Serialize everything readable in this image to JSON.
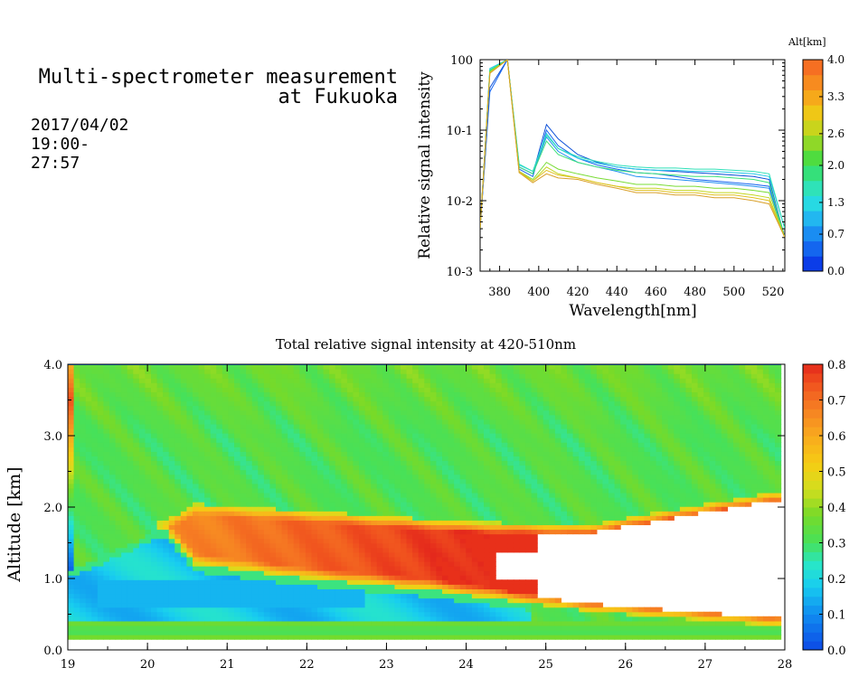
{
  "header": {
    "title_line1": "Multi-spectrometer measurement",
    "title_line2": "at Fukuoka",
    "datetime": "2017/04/02 19:00-27:57"
  },
  "chart_data": [
    {
      "type": "line",
      "xlabel": "Wavelength[nm]",
      "ylabel": "Relative signal intensity",
      "xlim": [
        370,
        526
      ],
      "ylim": [
        0.001,
        1
      ],
      "yscale": "log",
      "xticks": [
        "380",
        "400",
        "420",
        "440",
        "460",
        "480",
        "500",
        "520"
      ],
      "yticks": [
        "10-3",
        "10-2",
        "10-1",
        "100"
      ],
      "x": [
        370,
        375,
        384,
        390,
        397,
        404,
        410,
        420,
        430,
        440,
        450,
        460,
        470,
        480,
        490,
        500,
        510,
        518,
        526
      ],
      "series": [
        {
          "altitude_km": 0.2,
          "color": "#0b4fd8",
          "values": [
            0.004,
            0.4,
            1.0,
            0.03,
            0.024,
            0.12,
            0.075,
            0.045,
            0.035,
            0.03,
            0.028,
            0.027,
            0.026,
            0.025,
            0.024,
            0.023,
            0.022,
            0.02,
            0.003
          ]
        },
        {
          "altitude_km": 0.5,
          "color": "#1565ef",
          "values": [
            0.004,
            0.35,
            1.0,
            0.028,
            0.022,
            0.1,
            0.06,
            0.04,
            0.032,
            0.028,
            0.025,
            0.024,
            0.022,
            0.02,
            0.019,
            0.018,
            0.017,
            0.016,
            0.003
          ]
        },
        {
          "altitude_km": 0.8,
          "color": "#1e8ef2",
          "values": [
            0.004,
            0.7,
            1.0,
            0.03,
            0.024,
            0.08,
            0.05,
            0.035,
            0.03,
            0.026,
            0.022,
            0.021,
            0.02,
            0.019,
            0.018,
            0.017,
            0.016,
            0.015,
            0.003
          ]
        },
        {
          "altitude_km": 1.1,
          "color": "#27c8e8",
          "values": [
            0.004,
            0.75,
            1.0,
            0.032,
            0.026,
            0.09,
            0.055,
            0.04,
            0.034,
            0.03,
            0.028,
            0.027,
            0.027,
            0.026,
            0.026,
            0.025,
            0.024,
            0.022,
            0.004
          ]
        },
        {
          "altitude_km": 1.4,
          "color": "#2fe0b8",
          "values": [
            0.004,
            0.72,
            1.0,
            0.033,
            0.026,
            0.085,
            0.055,
            0.042,
            0.036,
            0.032,
            0.03,
            0.029,
            0.029,
            0.028,
            0.028,
            0.027,
            0.026,
            0.024,
            0.004
          ]
        },
        {
          "altitude_km": 1.7,
          "color": "#3ee27a",
          "values": [
            0.004,
            0.7,
            1.0,
            0.03,
            0.024,
            0.07,
            0.045,
            0.035,
            0.03,
            0.027,
            0.025,
            0.024,
            0.023,
            0.022,
            0.022,
            0.021,
            0.02,
            0.018,
            0.003
          ]
        },
        {
          "altitude_km": 2.2,
          "color": "#7adc36",
          "values": [
            0.004,
            0.68,
            1.0,
            0.026,
            0.02,
            0.035,
            0.028,
            0.024,
            0.021,
            0.019,
            0.017,
            0.017,
            0.016,
            0.016,
            0.015,
            0.015,
            0.014,
            0.013,
            0.003
          ]
        },
        {
          "altitude_km": 2.8,
          "color": "#c4d620",
          "values": [
            0.004,
            0.66,
            1.0,
            0.025,
            0.019,
            0.03,
            0.024,
            0.021,
            0.018,
            0.016,
            0.015,
            0.015,
            0.014,
            0.014,
            0.013,
            0.013,
            0.012,
            0.011,
            0.003
          ]
        },
        {
          "altitude_km": 3.4,
          "color": "#e0c020",
          "values": [
            0.004,
            0.65,
            1.0,
            0.026,
            0.019,
            0.027,
            0.023,
            0.021,
            0.018,
            0.016,
            0.014,
            0.014,
            0.013,
            0.013,
            0.012,
            0.012,
            0.011,
            0.01,
            0.003
          ]
        },
        {
          "altitude_km": 3.9,
          "color": "#d9a02a",
          "values": [
            0.004,
            0.64,
            1.0,
            0.025,
            0.018,
            0.024,
            0.021,
            0.02,
            0.017,
            0.015,
            0.013,
            0.013,
            0.012,
            0.012,
            0.011,
            0.011,
            0.01,
            0.009,
            0.003
          ]
        }
      ],
      "colorbar": {
        "label": "Alt[km]",
        "range": [
          0,
          4
        ],
        "ticks": [
          "4.0",
          "3.3",
          "2.6",
          "2.0",
          "1.3",
          "0.7",
          "0.0"
        ]
      }
    },
    {
      "type": "heatmap",
      "title": "Total relative signal intensity at 420-510nm",
      "ylabel": "Altitude [km]",
      "xlim": [
        19,
        28
      ],
      "ylim": [
        0,
        4
      ],
      "xticks": [
        "19",
        "20",
        "21",
        "22",
        "23",
        "24",
        "25",
        "26",
        "27",
        "28"
      ],
      "yticks": [
        "0.0",
        "1.0",
        "2.0",
        "3.0",
        "4.0"
      ],
      "time_range": [
        19.0,
        27.95
      ],
      "altitude_range": [
        0.15,
        4.0
      ],
      "value_range": [
        0,
        0.8
      ],
      "colorbar": {
        "range": [
          0,
          0.8
        ],
        "ticks": [
          "0.8",
          "0.7",
          "0.6",
          "0.5",
          "0.4",
          "0.3",
          "0.2",
          "0.1",
          "0.0"
        ]
      },
      "features": {
        "aerosol_layer_top_km": [
          {
            "t": 20.2,
            "alt": 1.8
          },
          {
            "t": 20.6,
            "alt": 2.05
          },
          {
            "t": 22.0,
            "alt": 1.95
          },
          {
            "t": 24.0,
            "alt": 1.8
          },
          {
            "t": 25.5,
            "alt": 1.75
          },
          {
            "t": 26.5,
            "alt": 1.95
          },
          {
            "t": 27.8,
            "alt": 2.2
          }
        ],
        "aerosol_layer_bottom_km": [
          {
            "t": 20.2,
            "alt": 1.7
          },
          {
            "t": 20.6,
            "alt": 1.2
          },
          {
            "t": 22.0,
            "alt": 1.0
          },
          {
            "t": 23.5,
            "alt": 0.85
          },
          {
            "t": 24.5,
            "alt": 0.7
          },
          {
            "t": 25.5,
            "alt": 0.55
          },
          {
            "t": 27.8,
            "alt": 0.35
          }
        ],
        "layer_peak_value": 0.75,
        "background_value": 0.32,
        "low_clear_value": 0.18
      }
    }
  ]
}
